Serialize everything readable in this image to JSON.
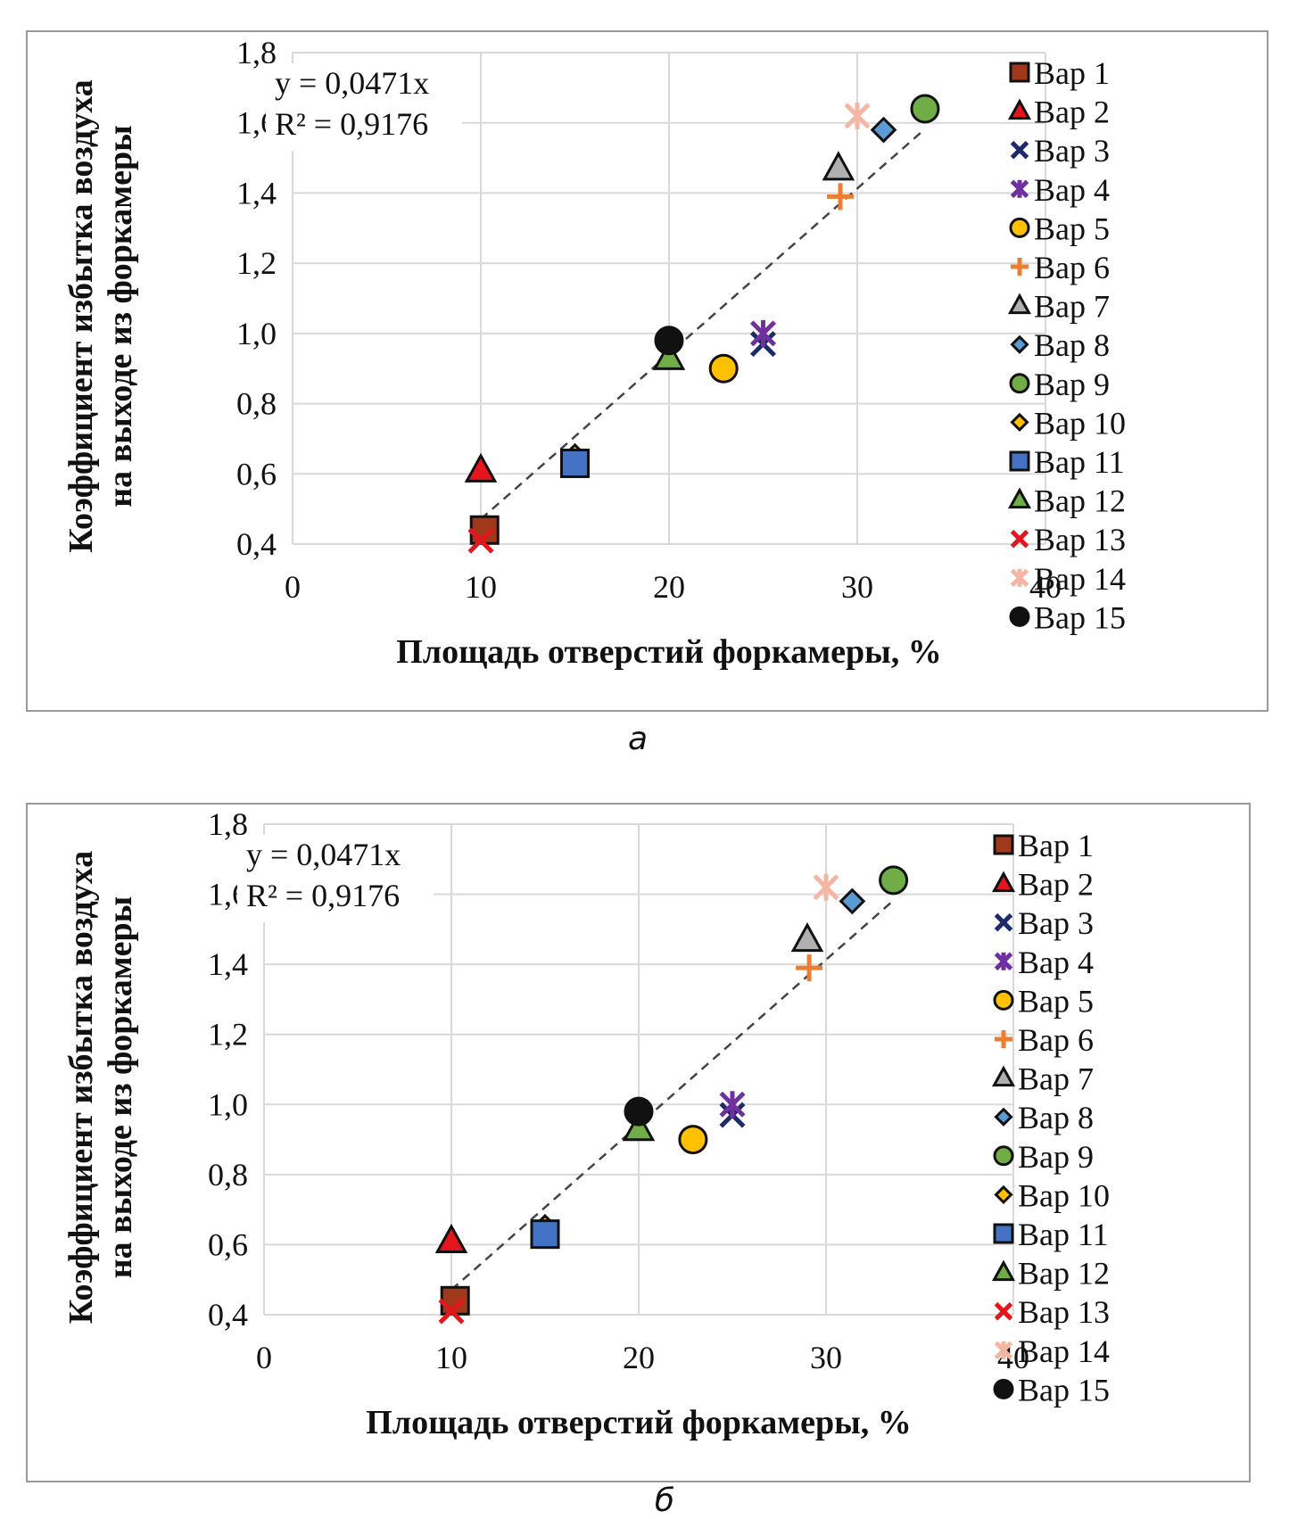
{
  "captions": [
    "а",
    "б"
  ],
  "chart_data": [
    {
      "type": "scatter",
      "panel": "а",
      "title": "",
      "xlabel": "Площадь отверстий форкамеры, %",
      "ylabel_lines": [
        "Коэффициент избытка воздуха",
        "на выходе из форкамеры"
      ],
      "xlim": [
        0,
        40
      ],
      "ylim": [
        0.4,
        1.8
      ],
      "xticks": [
        0,
        10,
        20,
        30,
        40
      ],
      "xtick_labels": [
        "0",
        "10",
        "20",
        "30",
        "40"
      ],
      "yticks": [
        0.4,
        0.6,
        0.8,
        1.0,
        1.2,
        1.4,
        1.6,
        1.8
      ],
      "ytick_labels": [
        "0,4",
        "0,6",
        "0,8",
        "1,0",
        "1,2",
        "1,4",
        "1,6",
        "1,8"
      ],
      "grid": true,
      "legend_position": "right",
      "trendline": {
        "type": "linear-through-origin",
        "slope": 0.0471,
        "x_range": [
          10,
          33.6
        ],
        "style": "dashed",
        "color": "#444444"
      },
      "equation_text": "y = 0,0471x",
      "r2_text": "R² = 0,9176",
      "series": [
        {
          "name": "Вар 1",
          "marker": "square",
          "fill": "#a0391b",
          "stroke": "#111111",
          "x": 10.2,
          "y": 0.44
        },
        {
          "name": "Вар 2",
          "marker": "triangle",
          "fill": "#e3151d",
          "stroke": "#111111",
          "x": 10.0,
          "y": 0.61
        },
        {
          "name": "Вар 3",
          "marker": "x",
          "fill": "none",
          "stroke": "#1f2a6b",
          "x": 25.0,
          "y": 0.97
        },
        {
          "name": "Вар 4",
          "marker": "asterisk",
          "fill": "none",
          "stroke": "#7030a0",
          "x": 25.0,
          "y": 1.0
        },
        {
          "name": "Вар 5",
          "marker": "circle",
          "fill": "#ffc000",
          "stroke": "#111111",
          "x": 22.9,
          "y": 0.9
        },
        {
          "name": "Вар 6",
          "marker": "plus",
          "fill": "none",
          "stroke": "#ed7d31",
          "x": 29.1,
          "y": 1.39
        },
        {
          "name": "Вар 7",
          "marker": "triangle",
          "fill": "#b0b0b0",
          "stroke": "#111111",
          "x": 29.0,
          "y": 1.47
        },
        {
          "name": "Вар 8",
          "marker": "diamond",
          "fill": "#5b9bd5",
          "stroke": "#111111",
          "x": 31.4,
          "y": 1.58
        },
        {
          "name": "Вар 9",
          "marker": "circle",
          "fill": "#70ad47",
          "stroke": "#111111",
          "x": 33.6,
          "y": 1.64
        },
        {
          "name": "Вар 10",
          "marker": "diamond",
          "fill": "#ffc000",
          "stroke": "#111111",
          "x": 15.0,
          "y": 0.65
        },
        {
          "name": "Вар 11",
          "marker": "square",
          "fill": "#4472c4",
          "stroke": "#111111",
          "x": 15.0,
          "y": 0.63
        },
        {
          "name": "Вар 12",
          "marker": "triangle",
          "fill": "#70ad47",
          "stroke": "#111111",
          "x": 20.0,
          "y": 0.93
        },
        {
          "name": "Вар 13",
          "marker": "x",
          "fill": "none",
          "stroke": "#e3151d",
          "x": 10.0,
          "y": 0.41
        },
        {
          "name": "Вар 14",
          "marker": "asterisk",
          "fill": "none",
          "stroke": "#f4b6a2",
          "x": 30.0,
          "y": 1.62
        },
        {
          "name": "Вар 15",
          "marker": "circle",
          "fill": "#111111",
          "stroke": "#111111",
          "x": 20.0,
          "y": 0.98
        }
      ]
    },
    {
      "type": "scatter",
      "panel": "б",
      "title": "",
      "xlabel": "Площадь отверстий форкамеры, %",
      "ylabel_lines": [
        "Коэффициент избытка воздуха",
        "на выходе из форкамеры"
      ],
      "xlim": [
        0,
        40
      ],
      "ylim": [
        0.4,
        1.8
      ],
      "xticks": [
        0,
        10,
        20,
        30,
        40
      ],
      "xtick_labels": [
        "0",
        "10",
        "20",
        "30",
        "40"
      ],
      "yticks": [
        0.4,
        0.6,
        0.8,
        1.0,
        1.2,
        1.4,
        1.6,
        1.8
      ],
      "ytick_labels": [
        "0,4",
        "0,6",
        "0,8",
        "1,0",
        "1,2",
        "1,4",
        "1,6",
        "1,8"
      ],
      "grid": true,
      "legend_position": "right",
      "trendline": {
        "type": "linear-through-origin",
        "slope": 0.0471,
        "x_range": [
          10,
          33.6
        ],
        "style": "dashed",
        "color": "#444444"
      },
      "equation_text": "y = 0,0471x",
      "r2_text": "R² = 0,9176",
      "series": [
        {
          "name": "Вар 1",
          "marker": "square",
          "fill": "#a0391b",
          "stroke": "#111111",
          "x": 10.2,
          "y": 0.44
        },
        {
          "name": "Вар 2",
          "marker": "triangle",
          "fill": "#e3151d",
          "stroke": "#111111",
          "x": 10.0,
          "y": 0.61
        },
        {
          "name": "Вар 3",
          "marker": "x",
          "fill": "none",
          "stroke": "#1f2a6b",
          "x": 25.0,
          "y": 0.97
        },
        {
          "name": "Вар 4",
          "marker": "asterisk",
          "fill": "none",
          "stroke": "#7030a0",
          "x": 25.0,
          "y": 1.0
        },
        {
          "name": "Вар 5",
          "marker": "circle",
          "fill": "#ffc000",
          "stroke": "#111111",
          "x": 22.9,
          "y": 0.9
        },
        {
          "name": "Вар 6",
          "marker": "plus",
          "fill": "none",
          "stroke": "#ed7d31",
          "x": 29.1,
          "y": 1.39
        },
        {
          "name": "Вар 7",
          "marker": "triangle",
          "fill": "#b0b0b0",
          "stroke": "#111111",
          "x": 29.0,
          "y": 1.47
        },
        {
          "name": "Вар 8",
          "marker": "diamond",
          "fill": "#5b9bd5",
          "stroke": "#111111",
          "x": 31.4,
          "y": 1.58
        },
        {
          "name": "Вар 9",
          "marker": "circle",
          "fill": "#70ad47",
          "stroke": "#111111",
          "x": 33.6,
          "y": 1.64
        },
        {
          "name": "Вар 10",
          "marker": "diamond",
          "fill": "#ffc000",
          "stroke": "#111111",
          "x": 15.0,
          "y": 0.65
        },
        {
          "name": "Вар 11",
          "marker": "square",
          "fill": "#4472c4",
          "stroke": "#111111",
          "x": 15.0,
          "y": 0.63
        },
        {
          "name": "Вар 12",
          "marker": "triangle",
          "fill": "#70ad47",
          "stroke": "#111111",
          "x": 20.0,
          "y": 0.93
        },
        {
          "name": "Вар 13",
          "marker": "x",
          "fill": "none",
          "stroke": "#e3151d",
          "x": 10.0,
          "y": 0.41
        },
        {
          "name": "Вар 14",
          "marker": "asterisk",
          "fill": "none",
          "stroke": "#f4b6a2",
          "x": 30.0,
          "y": 1.62
        },
        {
          "name": "Вар 15",
          "marker": "circle",
          "fill": "#111111",
          "stroke": "#111111",
          "x": 20.0,
          "y": 0.98
        }
      ]
    }
  ]
}
